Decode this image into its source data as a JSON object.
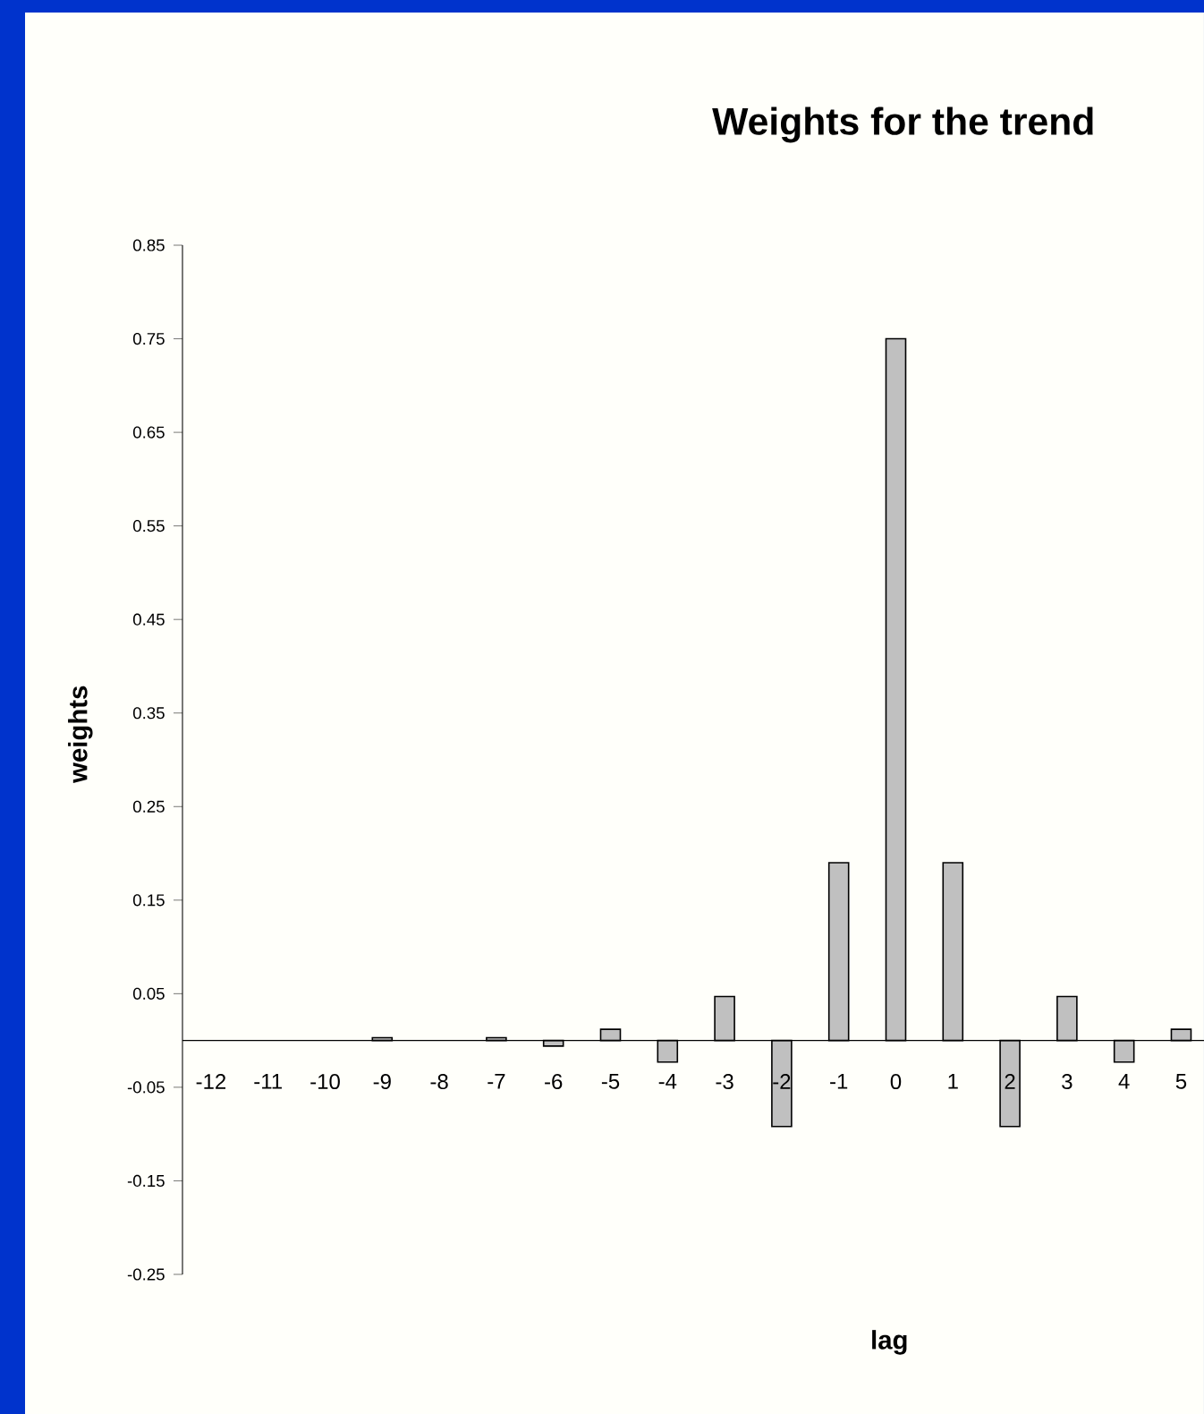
{
  "chart_data": {
    "type": "bar",
    "title": "Weights for the trend",
    "xlabel": "lag",
    "ylabel": "weights",
    "categories": [
      "-12",
      "-11",
      "-10",
      "-9",
      "-8",
      "-7",
      "-6",
      "-5",
      "-4",
      "-3",
      "-2",
      "-1",
      "0",
      "1",
      "2",
      "3",
      "4",
      "5"
    ],
    "values": [
      0,
      0,
      0,
      0.003,
      0,
      0.003,
      -0.006,
      0.012,
      -0.023,
      0.047,
      -0.092,
      0.19,
      0.75,
      0.19,
      -0.092,
      0.047,
      -0.023,
      0.012
    ],
    "color": "#c0c0c0",
    "ylim": [
      -0.25,
      0.85
    ],
    "yticks": [
      -0.25,
      -0.15,
      -0.05,
      0.05,
      0.15,
      0.25,
      0.35,
      0.45,
      0.55,
      0.65,
      0.75,
      0.85
    ]
  }
}
